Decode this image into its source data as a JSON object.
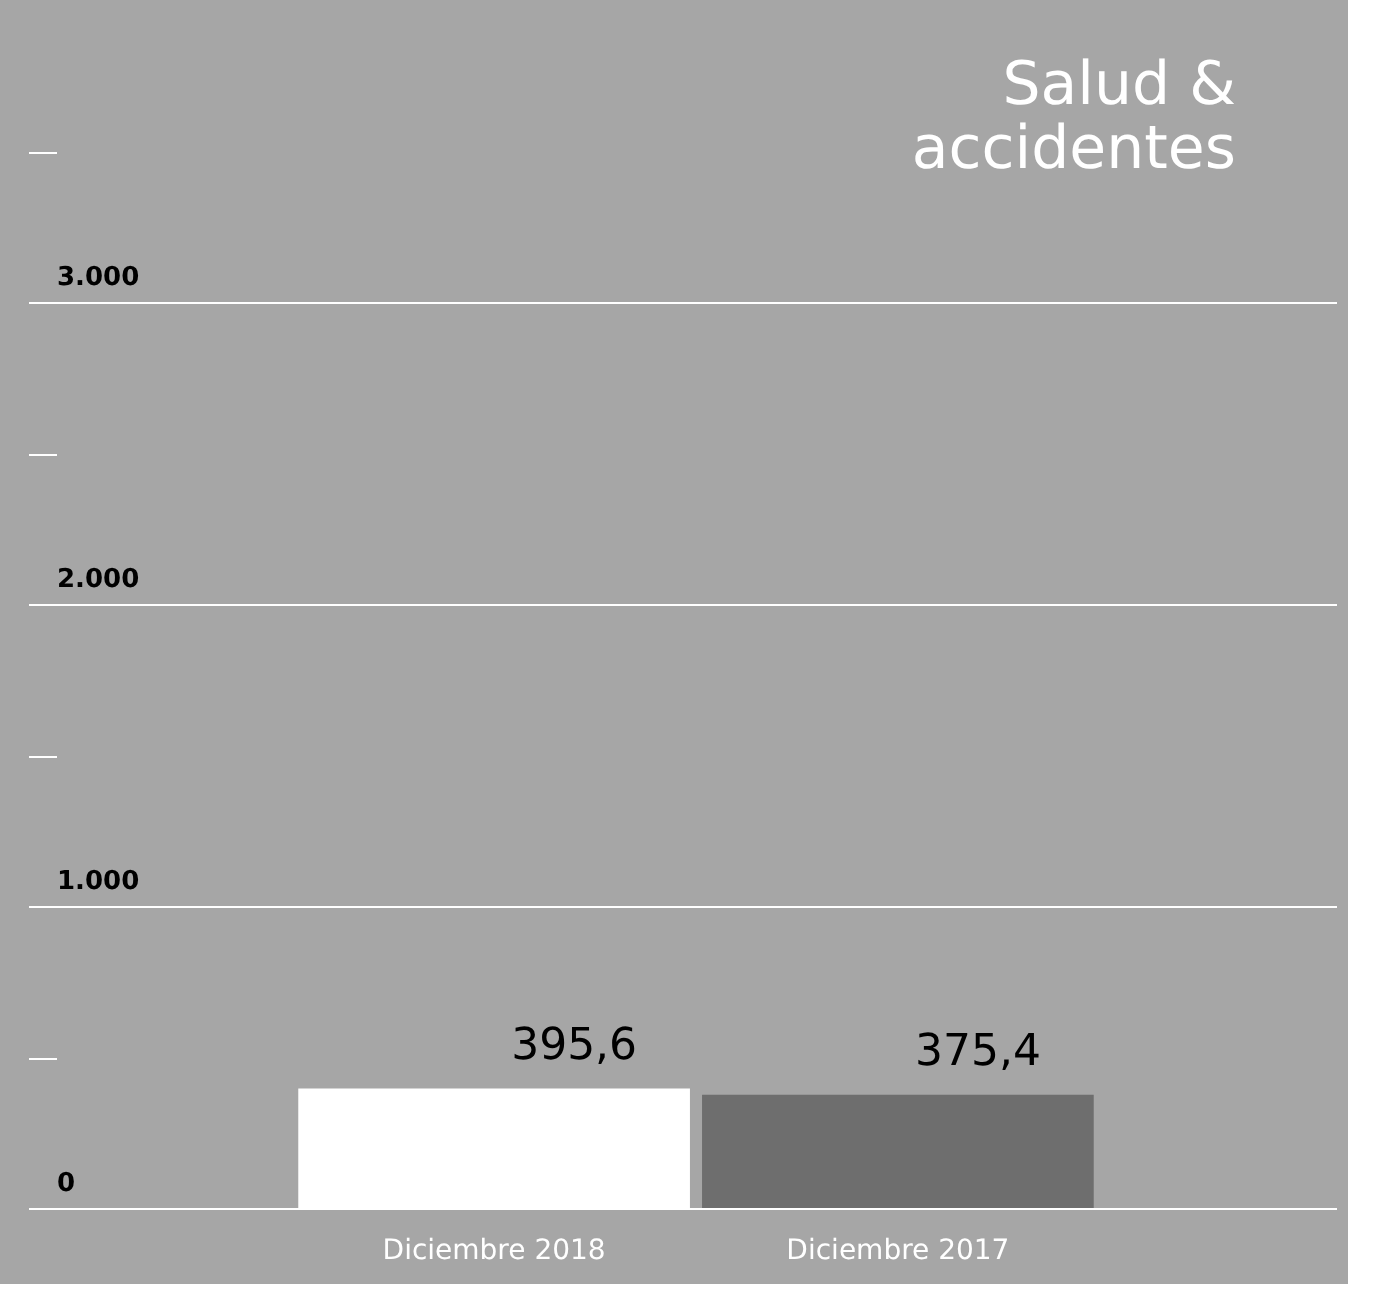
{
  "chart_data": {
    "type": "bar",
    "title": [
      "Salud &",
      "accidentes"
    ],
    "categories": [
      "Diciembre 2018",
      "Diciembre 2017"
    ],
    "values": [
      395.6,
      375.4
    ],
    "colors": [
      "#ffffff",
      "#6e6e6e"
    ],
    "value_labels": [
      "395,6",
      "375,4"
    ],
    "ylim": [
      0,
      4000
    ],
    "yticks": [
      0,
      {
        "value": 500,
        "label": null
      },
      {
        "value": 1000,
        "label": "1.000"
      },
      {
        "value": 1500,
        "label": null
      },
      {
        "value": 2000,
        "label": "2.000"
      },
      {
        "value": 2500,
        "label": null
      },
      {
        "value": 3000,
        "label": "3.000"
      },
      {
        "value": 3500,
        "label": null
      }
    ],
    "grid": "y"
  }
}
